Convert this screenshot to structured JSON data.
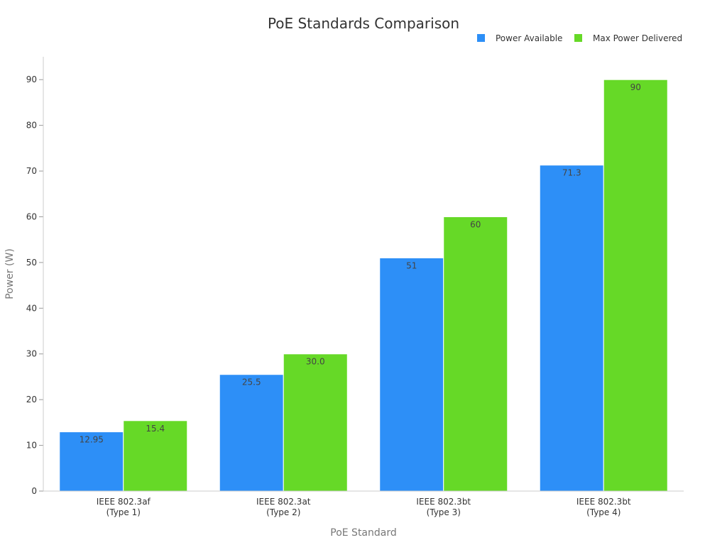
{
  "chart_data": {
    "type": "bar",
    "title": "PoE Standards Comparison",
    "xlabel": "PoE Standard",
    "ylabel": "Power (W)",
    "ylim": [
      0,
      95
    ],
    "yticks": [
      0,
      10,
      20,
      30,
      40,
      50,
      60,
      70,
      80,
      90
    ],
    "categories": [
      [
        "IEEE 802.3af",
        "(Type 1)"
      ],
      [
        "IEEE 802.3at",
        "(Type 2)"
      ],
      [
        "IEEE 802.3bt",
        "(Type 3)"
      ],
      [
        "IEEE 802.3bt",
        "(Type 4)"
      ]
    ],
    "series": [
      {
        "name": "Power Available",
        "color": "#2d8ff7",
        "values": [
          12.95,
          25.5,
          51,
          71.3
        ],
        "labels": [
          "12.95",
          "25.5",
          "51",
          "71.3"
        ]
      },
      {
        "name": "Max Power Delivered",
        "color": "#66d927",
        "values": [
          15.4,
          30.0,
          60,
          90
        ],
        "labels": [
          "15.4",
          "30.0",
          "60",
          "90"
        ]
      }
    ],
    "legend_position": "top-right",
    "grid": false
  }
}
